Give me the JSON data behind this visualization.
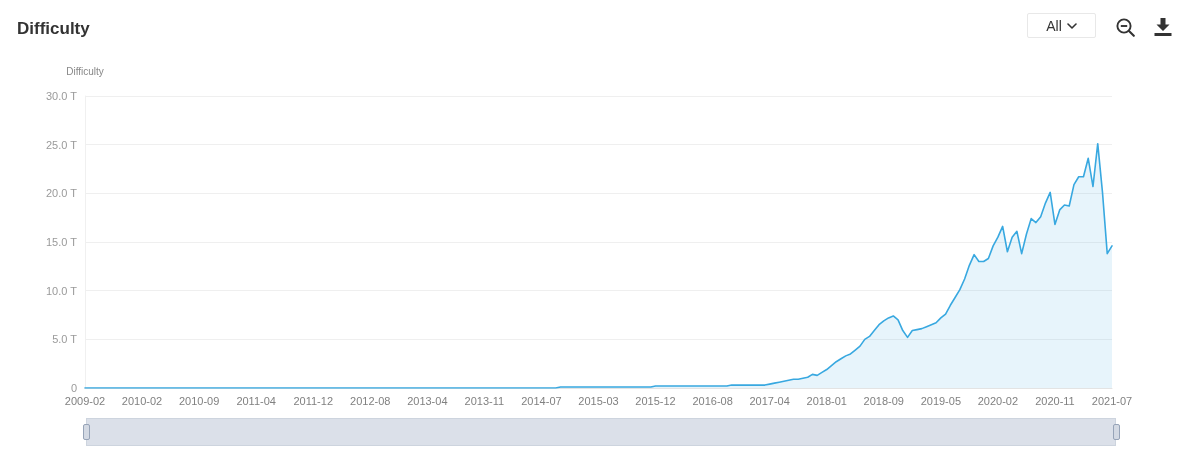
{
  "chart_data": {
    "type": "area",
    "title": "Difficulty",
    "ylabel": "Difficulty",
    "annotations": [
      "All"
    ],
    "categories": [
      "2009-02",
      null,
      null,
      null,
      null,
      null,
      null,
      null,
      null,
      null,
      null,
      null,
      "2010-02",
      null,
      null,
      null,
      null,
      null,
      null,
      null,
      null,
      null,
      null,
      null,
      "2010-09",
      null,
      null,
      null,
      null,
      null,
      null,
      null,
      null,
      null,
      null,
      null,
      "2011-04",
      null,
      null,
      null,
      null,
      null,
      null,
      null,
      null,
      null,
      null,
      null,
      "2011-12",
      null,
      null,
      null,
      null,
      null,
      null,
      null,
      null,
      null,
      null,
      null,
      "2012-08",
      null,
      null,
      null,
      null,
      null,
      null,
      null,
      null,
      null,
      null,
      null,
      "2013-04",
      null,
      null,
      null,
      null,
      null,
      null,
      null,
      null,
      null,
      null,
      null,
      "2013-11",
      null,
      null,
      null,
      null,
      null,
      null,
      null,
      null,
      null,
      null,
      null,
      "2014-07",
      null,
      null,
      null,
      null,
      null,
      null,
      null,
      null,
      null,
      null,
      null,
      "2015-03",
      null,
      null,
      null,
      null,
      null,
      null,
      null,
      null,
      null,
      null,
      null,
      "2015-12",
      null,
      null,
      null,
      null,
      null,
      null,
      null,
      null,
      null,
      null,
      null,
      "2016-08",
      null,
      null,
      null,
      null,
      null,
      null,
      null,
      null,
      null,
      null,
      null,
      "2017-04",
      null,
      null,
      null,
      null,
      null,
      null,
      null,
      null,
      null,
      null,
      null,
      "2018-01",
      null,
      null,
      null,
      null,
      null,
      null,
      null,
      null,
      null,
      null,
      null,
      "2018-09",
      null,
      null,
      null,
      null,
      null,
      null,
      null,
      null,
      null,
      null,
      null,
      "2019-05",
      null,
      null,
      null,
      null,
      null,
      null,
      null,
      null,
      null,
      null,
      null,
      "2020-02",
      null,
      null,
      null,
      null,
      null,
      null,
      null,
      null,
      null,
      null,
      null,
      "2020-11",
      null,
      null,
      null,
      null,
      null,
      null,
      null,
      null,
      null,
      null,
      null,
      "2021-07"
    ],
    "series": [
      {
        "color": "#38a8e0",
        "values": [
          0,
          0,
          0,
          0,
          0,
          0,
          0,
          0,
          0,
          0,
          0,
          0,
          0,
          0,
          0,
          0,
          0,
          0,
          0,
          0,
          0,
          0,
          0,
          0,
          0,
          0,
          0,
          0,
          0,
          0,
          0,
          0,
          0,
          0,
          0,
          0,
          0,
          0,
          0,
          0,
          0,
          0,
          0,
          0,
          0,
          0,
          0,
          0,
          0,
          0,
          0,
          0,
          0,
          0,
          0,
          0,
          0,
          0,
          0,
          0,
          0,
          0,
          0,
          0,
          0,
          0,
          0,
          0,
          0,
          0,
          0,
          0,
          0,
          0,
          0,
          0,
          0,
          0,
          0,
          0,
          0,
          0,
          0,
          0,
          0,
          0,
          0,
          0,
          0,
          0,
          0,
          0,
          0,
          0,
          0,
          0,
          0,
          0,
          0,
          0,
          0.1,
          0.1,
          0.1,
          0.1,
          0.1,
          0.1,
          0.1,
          0.1,
          0.1,
          0.1,
          0.1,
          0.1,
          0.1,
          0.1,
          0.1,
          0.1,
          0.1,
          0.1,
          0.1,
          0.1,
          0.2,
          0.2,
          0.2,
          0.2,
          0.2,
          0.2,
          0.2,
          0.2,
          0.2,
          0.2,
          0.2,
          0.2,
          0.2,
          0.2,
          0.2,
          0.2,
          0.3,
          0.3,
          0.3,
          0.3,
          0.3,
          0.3,
          0.3,
          0.3,
          0.4,
          0.5,
          0.6,
          0.7,
          0.8,
          0.9,
          0.9,
          1.0,
          1.1,
          1.4,
          1.3,
          1.6,
          1.9,
          2.3,
          2.7,
          3.0,
          3.3,
          3.5,
          3.9,
          4.3,
          5.0,
          5.3,
          5.9,
          6.5,
          6.9,
          7.2,
          7.4,
          7.0,
          5.9,
          5.2,
          5.9,
          6.0,
          6.1,
          6.3,
          6.5,
          6.7,
          7.2,
          7.6,
          8.5,
          9.3,
          10.1,
          11.2,
          12.6,
          13.7,
          13.0,
          13.0,
          13.3,
          14.6,
          15.5,
          16.6,
          14.0,
          15.5,
          16.1,
          13.8,
          15.8,
          17.4,
          17.0,
          17.6,
          19.0,
          20.1,
          16.8,
          18.3,
          18.8,
          18.7,
          20.9,
          21.7,
          21.7,
          23.6,
          20.7,
          25.1,
          20.1,
          13.8,
          14.6
        ]
      }
    ],
    "ylim": [
      0,
      30
    ],
    "yticks": [
      0,
      {
        "value": 5,
        "label": "5.0 T"
      },
      {
        "value": 10,
        "label": "10.0 T"
      },
      {
        "value": 15,
        "label": "15.0 T"
      },
      {
        "value": 20,
        "label": "20.0 T"
      },
      {
        "value": 25,
        "label": "25.0 T"
      },
      {
        "value": 30,
        "label": "30.0 T"
      }
    ],
    "grid": "y",
    "marker": "none"
  }
}
